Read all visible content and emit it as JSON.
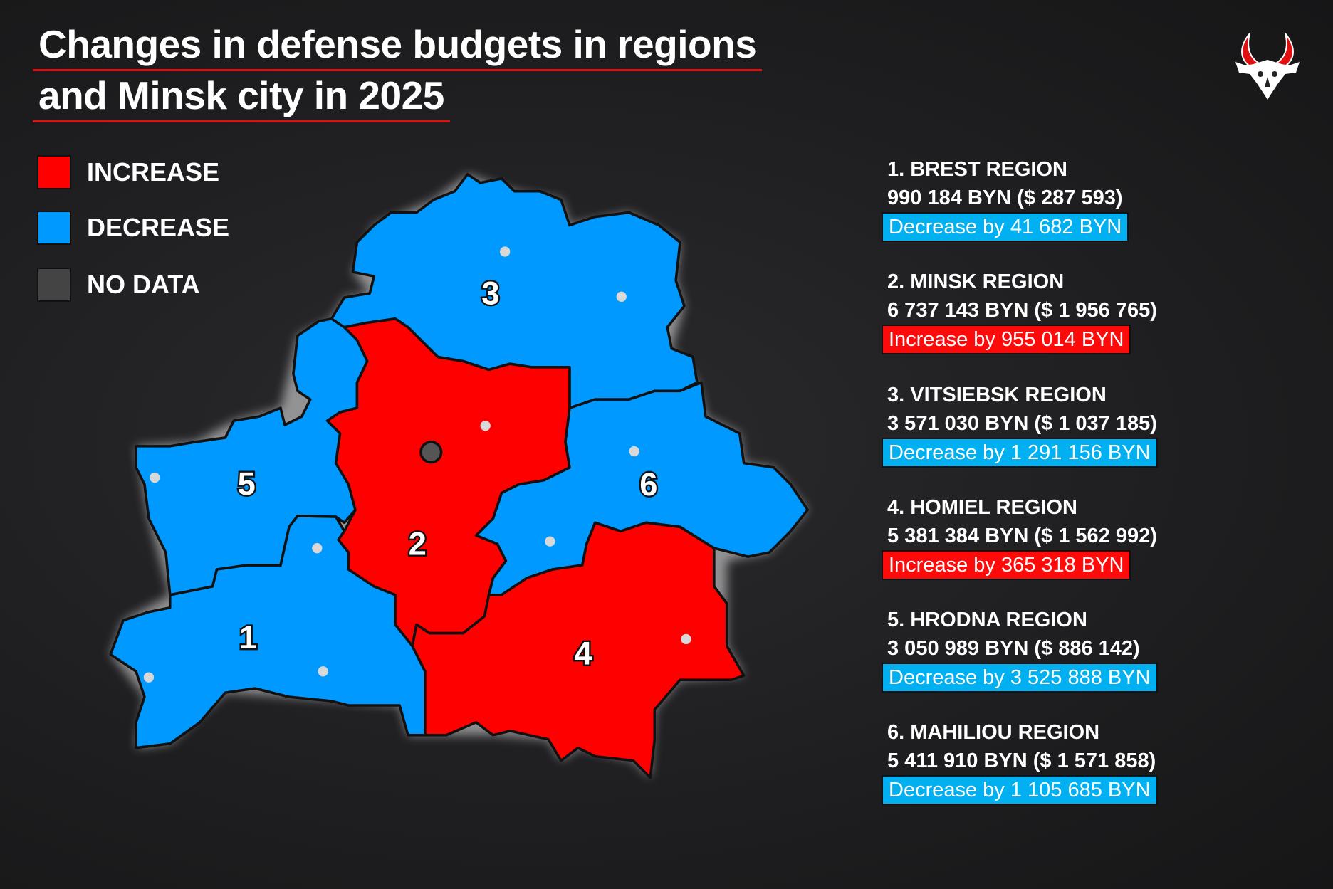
{
  "title": {
    "line1": "Changes in defense budgets in regions",
    "line2": "and Minsk city in 2025"
  },
  "legend": [
    {
      "label": "INCREASE",
      "color": "#ff0000"
    },
    {
      "label": "DECREASE",
      "color": "#0099ff"
    },
    {
      "label": "NO DATA",
      "color": "#444444"
    }
  ],
  "map_labels": [
    "1",
    "2",
    "3",
    "4",
    "5",
    "6"
  ],
  "regions": [
    {
      "heading": "1. BREST REGION",
      "budget": "990 184 BYN ($ 287 593)",
      "change": "Decrease by 41 682 BYN",
      "trend": "decrease"
    },
    {
      "heading": "2. MINSK REGION",
      "budget": "6 737 143 BYN ($ 1 956 765)",
      "change": "Increase by 955 014 BYN",
      "trend": "increase"
    },
    {
      "heading": "3. VITSIEBSK REGION",
      "budget": "3 571 030 BYN ($ 1 037 185)",
      "change": "Decrease by 1 291 156 BYN",
      "trend": "decrease"
    },
    {
      "heading": "4. HOMIEL REGION",
      "budget": "5 381 384 BYN ($ 1 562 992)",
      "change": "Increase by 365 318 BYN",
      "trend": "increase"
    },
    {
      "heading": "5. HRODNA REGION",
      "budget": "3 050 989 BYN ($ 886 142)",
      "change": "Decrease by 3 525 888 BYN",
      "trend": "decrease"
    },
    {
      "heading": "6. MAHILIOU REGION",
      "budget": "5 411 910 BYN ($ 1 571 858)",
      "change": "Decrease by 1 105 685 BYN",
      "trend": "decrease"
    }
  ],
  "logo": {
    "icon": "horned-skull-logo",
    "colors": [
      "#ffffff",
      "#e01010"
    ]
  }
}
